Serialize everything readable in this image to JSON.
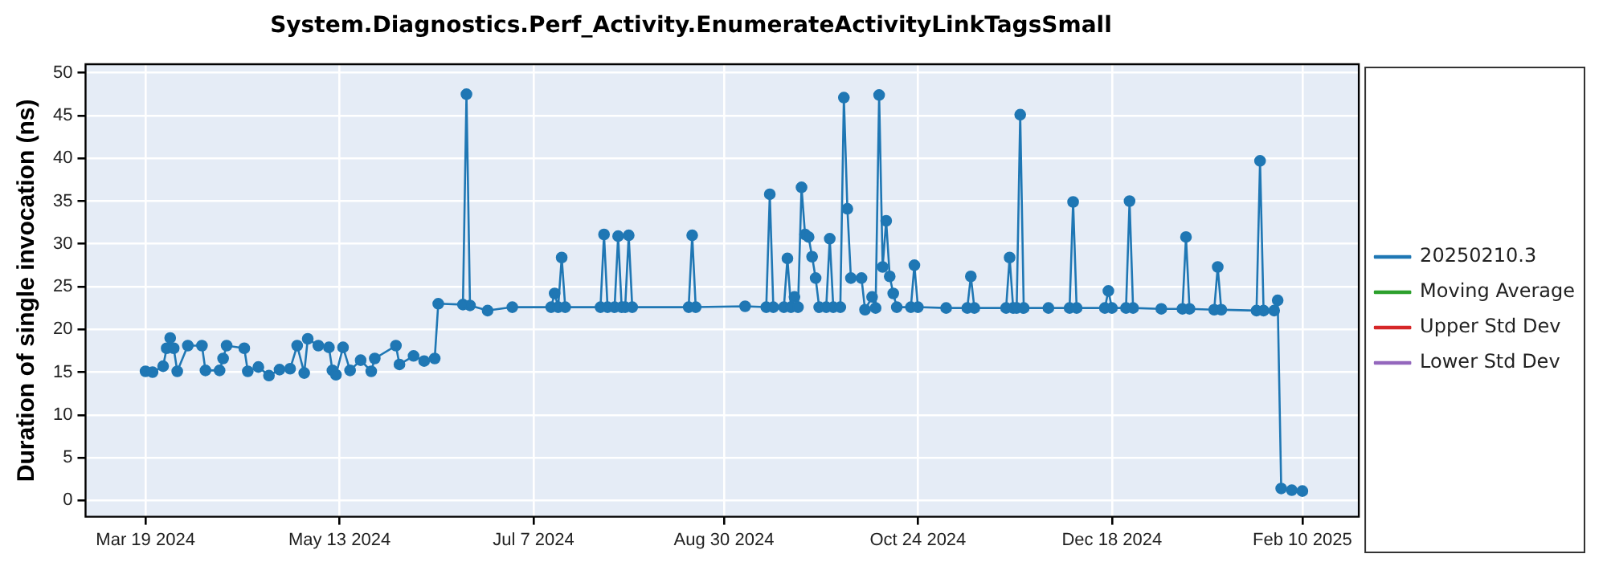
{
  "chart_data": {
    "type": "line",
    "title": "System.Diagnostics.Perf_Activity.EnumerateActivityLinkTagsSmall",
    "ylabel": "Duration of single invocation (ns)",
    "xlim": [
      "2024-03-02",
      "2025-02-26"
    ],
    "xticks": [
      {
        "value": "2024-03-19",
        "label": "Mar 19 2024"
      },
      {
        "value": "2024-05-13",
        "label": "May 13 2024"
      },
      {
        "value": "2024-07-07",
        "label": "Jul 7 2024"
      },
      {
        "value": "2024-08-30",
        "label": "Aug 30 2024"
      },
      {
        "value": "2024-10-24",
        "label": "Oct 24 2024"
      },
      {
        "value": "2024-12-18",
        "label": "Dec 18 2024"
      },
      {
        "value": "2025-02-10",
        "label": "Feb 10 2025"
      }
    ],
    "ylim": [
      -1.9,
      51
    ],
    "yticks": [
      0,
      5,
      10,
      15,
      20,
      25,
      30,
      35,
      40,
      45,
      50
    ],
    "grid": true,
    "legend": "right",
    "marker": "circle",
    "line_style": "solid",
    "series": [
      {
        "name": "20250210.3",
        "color": "#1f77b4",
        "x": [
          "2024-03-19",
          "2024-03-21",
          "2024-03-24",
          "2024-03-25",
          "2024-03-26",
          "2024-03-27",
          "2024-03-28",
          "2024-03-31",
          "2024-04-04",
          "2024-04-05",
          "2024-04-09",
          "2024-04-10",
          "2024-04-11",
          "2024-04-16",
          "2024-04-17",
          "2024-04-20",
          "2024-04-23",
          "2024-04-26",
          "2024-04-29",
          "2024-05-01",
          "2024-05-03",
          "2024-05-04",
          "2024-05-07",
          "2024-05-10",
          "2024-05-11",
          "2024-05-12",
          "2024-05-14",
          "2024-05-16",
          "2024-05-19",
          "2024-05-22",
          "2024-05-23",
          "2024-05-29",
          "2024-05-30",
          "2024-06-03",
          "2024-06-06",
          "2024-06-09",
          "2024-06-10",
          "2024-06-17",
          "2024-06-18",
          "2024-06-19",
          "2024-06-24",
          "2024-07-01",
          "2024-07-12",
          "2024-07-13",
          "2024-07-14",
          "2024-07-15",
          "2024-07-16",
          "2024-07-26",
          "2024-07-27",
          "2024-07-28",
          "2024-07-30",
          "2024-07-31",
          "2024-08-01",
          "2024-08-02",
          "2024-08-03",
          "2024-08-04",
          "2024-08-20",
          "2024-08-21",
          "2024-08-22",
          "2024-09-05",
          "2024-09-11",
          "2024-09-12",
          "2024-09-13",
          "2024-09-16",
          "2024-09-17",
          "2024-09-18",
          "2024-09-19",
          "2024-09-20",
          "2024-09-21",
          "2024-09-22",
          "2024-09-23",
          "2024-09-24",
          "2024-09-25",
          "2024-09-26",
          "2024-09-28",
          "2024-09-29",
          "2024-09-30",
          "2024-10-02",
          "2024-10-03",
          "2024-10-04",
          "2024-10-05",
          "2024-10-08",
          "2024-10-09",
          "2024-10-11",
          "2024-10-12",
          "2024-10-13",
          "2024-10-14",
          "2024-10-15",
          "2024-10-16",
          "2024-10-17",
          "2024-10-18",
          "2024-10-22",
          "2024-10-23",
          "2024-10-24",
          "2024-11-01",
          "2024-11-07",
          "2024-11-08",
          "2024-11-09",
          "2024-11-18",
          "2024-11-19",
          "2024-11-20",
          "2024-11-21",
          "2024-11-22",
          "2024-11-23",
          "2024-11-30",
          "2024-12-06",
          "2024-12-07",
          "2024-12-08",
          "2024-12-16",
          "2024-12-17",
          "2024-12-18",
          "2024-12-22",
          "2024-12-23",
          "2024-12-24",
          "2025-01-01",
          "2025-01-07",
          "2025-01-08",
          "2025-01-09",
          "2025-01-16",
          "2025-01-17",
          "2025-01-18",
          "2025-01-28",
          "2025-01-29",
          "2025-01-30",
          "2025-02-02",
          "2025-02-03",
          "2025-02-04",
          "2025-02-07",
          "2025-02-10"
        ],
        "values": [
          15.1,
          15.0,
          15.7,
          17.8,
          19.0,
          17.8,
          15.1,
          18.1,
          18.1,
          15.2,
          15.2,
          16.6,
          18.1,
          17.8,
          15.1,
          15.6,
          14.6,
          15.3,
          15.4,
          18.1,
          14.9,
          18.9,
          18.1,
          17.9,
          15.2,
          14.7,
          17.9,
          15.2,
          16.4,
          15.1,
          16.6,
          18.1,
          15.9,
          16.9,
          16.3,
          16.6,
          23.0,
          22.9,
          47.5,
          22.8,
          22.2,
          22.6,
          22.6,
          24.2,
          22.6,
          28.4,
          22.6,
          22.6,
          31.1,
          22.6,
          22.6,
          30.9,
          22.6,
          22.6,
          31.0,
          22.6,
          22.6,
          31.0,
          22.6,
          22.7,
          22.6,
          35.8,
          22.6,
          22.6,
          28.3,
          22.6,
          23.8,
          22.6,
          36.6,
          31.1,
          30.8,
          28.5,
          26.0,
          22.6,
          22.6,
          30.6,
          22.6,
          22.6,
          47.1,
          34.1,
          26.0,
          26.0,
          22.3,
          23.8,
          22.5,
          47.4,
          27.3,
          32.7,
          26.2,
          24.2,
          22.6,
          22.6,
          27.5,
          22.6,
          22.5,
          22.5,
          26.2,
          22.5,
          22.5,
          28.4,
          22.5,
          22.5,
          45.1,
          22.5,
          22.5,
          22.5,
          34.9,
          22.5,
          22.5,
          24.5,
          22.5,
          22.5,
          35.0,
          22.5,
          22.4,
          22.4,
          30.8,
          22.4,
          22.3,
          27.3,
          22.3,
          22.2,
          39.7,
          22.2,
          22.2,
          23.4,
          1.4,
          1.2,
          1.1
        ]
      },
      {
        "name": "Moving Average",
        "color": "#2ca02c"
      },
      {
        "name": "Upper Std Dev",
        "color": "#d62728"
      },
      {
        "name": "Lower Std Dev",
        "color": "#9467bd"
      }
    ]
  }
}
